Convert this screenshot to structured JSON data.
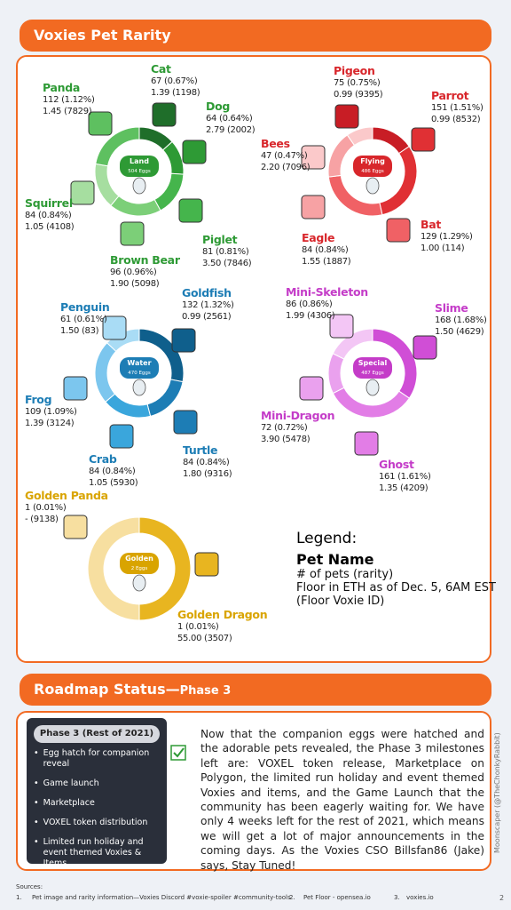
{
  "header": {
    "title": "Voxies Pet Rarity"
  },
  "groups": [
    {
      "label": "Land",
      "eggs": "504 Eggs",
      "color": "#2e9a35",
      "pets": [
        {
          "name": "Cat",
          "count": 67,
          "share": "(0.67%)",
          "floor": "1.39 (1198)",
          "color": "#1f6e2a"
        },
        {
          "name": "Dog",
          "count": 64,
          "share": "(0.64%)",
          "floor": "2.79 (2002)",
          "color": "#2e9a35"
        },
        {
          "name": "Piglet",
          "count": 81,
          "share": "(0.81%)",
          "floor": "3.50 (7846)",
          "color": "#45b54c"
        },
        {
          "name": "Brown Bear",
          "count": 96,
          "share": "(0.96%)",
          "floor": "1.90 (5098)",
          "color": "#7ccf78"
        },
        {
          "name": "Squirrel",
          "count": 84,
          "share": "(0.84%)",
          "floor": "1.05 (4108)",
          "color": "#a6dea0"
        },
        {
          "name": "Panda",
          "count": 112,
          "share": "(1.12%)",
          "floor": "1.45 (7829)",
          "color": "#5ec060"
        }
      ]
    },
    {
      "label": "Flying",
      "eggs": "486 Eggs",
      "color": "#d8262b",
      "pets": [
        {
          "name": "Pigeon",
          "count": 75,
          "share": "(0.75%)",
          "floor": "0.99 (9395)",
          "color": "#c81d25"
        },
        {
          "name": "Parrot",
          "count": 151,
          "share": "(1.51%)",
          "floor": "0.99 (8532)",
          "color": "#e03034"
        },
        {
          "name": "Bat",
          "count": 129,
          "share": "(1.29%)",
          "floor": "1.00 (114)",
          "color": "#f06165"
        },
        {
          "name": "Eagle",
          "count": 84,
          "share": "(0.84%)",
          "floor": "1.55 (1887)",
          "color": "#f7a2a4"
        },
        {
          "name": "Bees",
          "count": 47,
          "share": "(0.47%)",
          "floor": "2.20 (7096)",
          "color": "#fbc9ca"
        }
      ]
    },
    {
      "label": "Water",
      "eggs": "470 Eggs",
      "color": "#1d7db5",
      "pets": [
        {
          "name": "Goldfish",
          "count": 132,
          "share": "(1.32%)",
          "floor": "0.99 (2561)",
          "color": "#0f5f8c"
        },
        {
          "name": "Turtle",
          "count": 84,
          "share": "(0.84%)",
          "floor": "1.80 (9316)",
          "color": "#1d7db5"
        },
        {
          "name": "Crab",
          "count": 84,
          "share": "(0.84%)",
          "floor": "1.05 (5930)",
          "color": "#3aa6dc"
        },
        {
          "name": "Frog",
          "count": 109,
          "share": "(1.09%)",
          "floor": "1.39 (3124)",
          "color": "#7cc6ee"
        },
        {
          "name": "Penguin",
          "count": 61,
          "share": "(0.61%)",
          "floor": "1.50 (83)",
          "color": "#a9dcf5"
        }
      ]
    },
    {
      "label": "Special",
      "eggs": "487 Eggs",
      "color": "#c43cc8",
      "pets": [
        {
          "name": "Slime",
          "count": 168,
          "share": "(1.68%)",
          "floor": "1.50 (4629)",
          "color": "#d04ed6"
        },
        {
          "name": "Ghost",
          "count": 161,
          "share": "(1.61%)",
          "floor": "1.35 (4209)",
          "color": "#e27de6"
        },
        {
          "name": "Mini-Dragon",
          "count": 72,
          "share": "(0.72%)",
          "floor": "3.90 (5478)",
          "color": "#eaa1ee"
        },
        {
          "name": "Mini-Skeleton",
          "count": 86,
          "share": "(0.86%)",
          "floor": "1.99 (4306)",
          "color": "#f3c6f5"
        }
      ]
    },
    {
      "label": "Golden",
      "eggs": "2 Eggs",
      "color": "#d9a400",
      "pets": [
        {
          "name": "Golden Dragon",
          "count": 1,
          "share": "(0.01%)",
          "floor": "55.00 (3507)",
          "color": "#e8b520"
        },
        {
          "name": "Golden Panda",
          "count": 1,
          "share": "(0.01%)",
          "floor": "- (9138)",
          "color": "#f7dfa0"
        }
      ]
    }
  ],
  "legend": {
    "title": "Legend:",
    "name": "Pet Name",
    "line1": "# of pets (rarity)",
    "line2": "Floor in ETH as of Dec. 5, 6AM EST",
    "line3": "(Floor Voxie ID)"
  },
  "roadmap": {
    "title": "Roadmap Status—",
    "phase": "Phase 3",
    "card_title": "Phase 3 (Rest of 2021)",
    "items": [
      "Egg hatch for companion reveal",
      "Game launch",
      "Marketplace",
      "VOXEL token distribution",
      "Limited run holiday and event themed Voxies & Items"
    ],
    "text": "Now that the companion eggs were hatched and the adorable pets revealed, the Phase 3 milestones left are: VOXEL token release, Marketplace on Polygon, the limited run holiday and event themed Voxies and items, and the Game Launch that the community has been eagerly waiting for. We have only 4 weeks left for the rest of 2021, which means we will get a lot of major announcements in the coming days. As the Voxies CSO Billsfan86 (Jake) says, Stay Tuned!"
  },
  "sources": {
    "title": "Sources:",
    "items": [
      {
        "num": "1.",
        "text": "Pet image and rarity information—Voxies Discord #voxie-spoiler #community-tools"
      },
      {
        "num": "2.",
        "text": "Pet Floor - opensea.io"
      },
      {
        "num": "3.",
        "text": "voxies.io"
      }
    ]
  },
  "credit": "Moonscaper (@TheChonkyRabbit)",
  "page": "2"
}
